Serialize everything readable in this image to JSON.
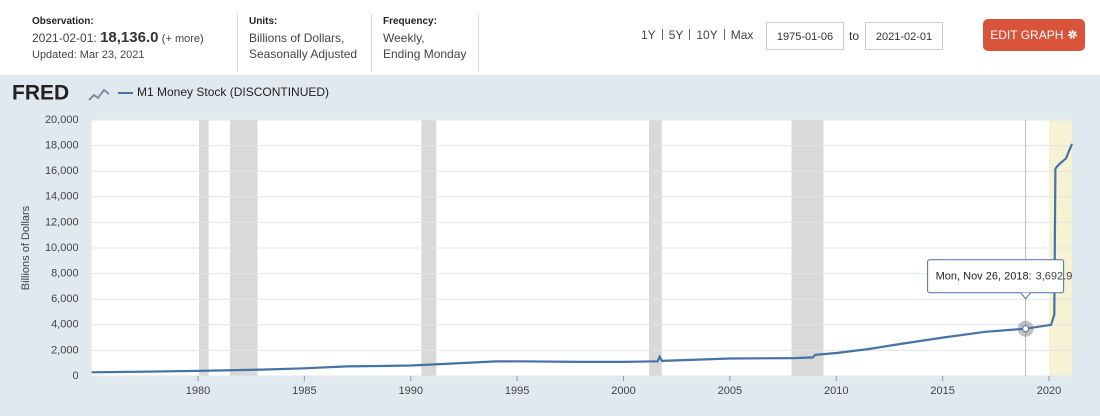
{
  "header": {
    "observation": {
      "label": "Observation:",
      "date": "2021-02-01:",
      "value": "18,136.0",
      "more": "(+ more)",
      "updated": "Updated: Mar 23, 2021"
    },
    "units": {
      "label": "Units:",
      "lines": [
        "Billions of Dollars,",
        "Seasonally Adjusted"
      ]
    },
    "frequency": {
      "label": "Frequency:",
      "lines": [
        "Weekly,",
        "Ending Monday"
      ]
    },
    "ranges": [
      "1Y",
      "5Y",
      "10Y",
      "Max"
    ],
    "start_date": "1975-01-06",
    "to": "to",
    "end_date": "2021-02-01",
    "edit_button": "EDIT GRAPH",
    "logo": "FRED"
  },
  "chart_data": {
    "type": "line",
    "y_label": "Billions of Dollars",
    "x": [
      1975.0,
      1977.0,
      1980.0,
      1983.0,
      1985.0,
      1987.0,
      1988.5,
      1990.0,
      1992.0,
      1994.0,
      1995.0,
      1998.0,
      2000.0,
      2001.6,
      2001.7,
      2001.8,
      2003.0,
      2005.0,
      2008.0,
      2008.9,
      2009.0,
      2010.0,
      2011.5,
      2013.0,
      2015.0,
      2017.0,
      2018.9,
      2020.1,
      2020.25,
      2020.3,
      2020.45,
      2020.8,
      2021.08
    ],
    "series": [
      {
        "name": "M1 Money Stock (DISCONTINUED)",
        "color": "#4572a7",
        "values": [
          290,
          330,
          400,
          500,
          600,
          750,
          780,
          820,
          980,
          1140,
          1150,
          1100,
          1100,
          1150,
          1500,
          1180,
          1250,
          1370,
          1400,
          1450,
          1650,
          1800,
          2100,
          2500,
          3000,
          3450,
          3692.9,
          4000,
          4800,
          16200,
          16500,
          17000,
          18136
        ]
      }
    ],
    "xlim": [
      1975.0,
      2021.08
    ],
    "xticks": [
      1980,
      1985,
      1990,
      1995,
      2000,
      2005,
      2010,
      2015,
      2020
    ],
    "ylim": [
      0,
      20000
    ],
    "yticks": [
      0,
      {
        "value": 2000,
        "label": "2,000"
      },
      {
        "value": 4000,
        "label": "4,000"
      },
      {
        "value": 6000,
        "label": "6,000"
      },
      {
        "value": 8000,
        "label": "8,000"
      },
      {
        "value": 10000,
        "label": "10,000"
      },
      {
        "value": 12000,
        "label": "12,000"
      },
      {
        "value": 14000,
        "label": "14,000"
      },
      {
        "value": 16000,
        "label": "16,000"
      },
      {
        "value": 18000,
        "label": "18,000"
      },
      {
        "value": 20000,
        "label": "20,000"
      }
    ],
    "grid": true,
    "recessions": [
      [
        1980.05,
        1980.5
      ],
      [
        1981.5,
        1982.8
      ],
      [
        1990.5,
        1991.2
      ],
      [
        2001.2,
        2001.8
      ],
      [
        2007.9,
        2009.4
      ]
    ],
    "recession_color": "#d9d9d9",
    "highlight": [
      2020.0,
      2021.08
    ],
    "highlight_color": "#f5f3d4",
    "tooltip": {
      "date": "Mon, Nov 26, 2018:",
      "x": 2018.9,
      "value": 3692.9,
      "value_label": "3,692.9"
    }
  }
}
